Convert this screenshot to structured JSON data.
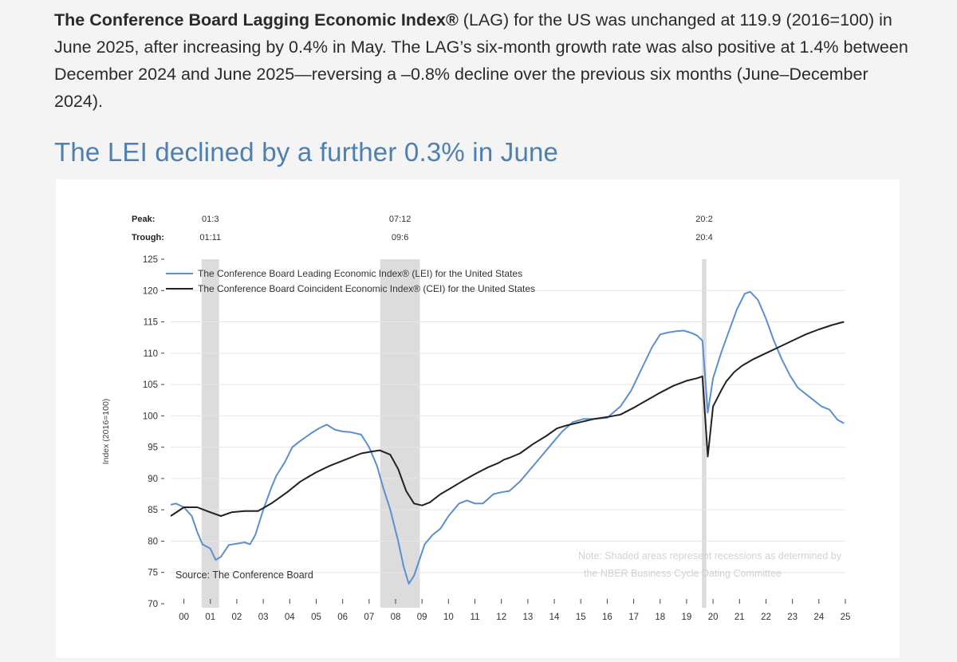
{
  "intro": {
    "bold": "The Conference Board Lagging Economic Index®",
    "rest": " (LAG) for the US was unchanged at 119.9 (2016=100) in June 2025, after increasing by 0.4% in May. The LAG’s six-month growth rate was also positive at 1.4% between December 2024 and June 2025—reversing a –0.8% decline over the previous six months (June–December 2024)."
  },
  "headline": "The LEI declined by a further 0.3% in June",
  "chart_data": {
    "type": "line",
    "ylabel": "Index (2016=100)",
    "ylim": [
      70,
      125
    ],
    "yticks": [
      70,
      75,
      80,
      85,
      90,
      95,
      100,
      105,
      110,
      115,
      120,
      125
    ],
    "xlim": [
      2000,
      2025.5
    ],
    "xtick_labels": [
      "00",
      "01",
      "02",
      "03",
      "04",
      "05",
      "06",
      "07",
      "08",
      "09",
      "10",
      "11",
      "12",
      "13",
      "14",
      "15",
      "16",
      "17",
      "18",
      "19",
      "20",
      "21",
      "22",
      "23",
      "24",
      "25"
    ],
    "peak_label": "Peak:",
    "trough_label": "Trough:",
    "recessions": [
      {
        "start": 2001.17,
        "end": 2001.83,
        "peak": "01:3",
        "trough": "01:11"
      },
      {
        "start": 2007.92,
        "end": 2009.42,
        "peak": "07:12",
        "trough": "09:6"
      },
      {
        "start": 2020.08,
        "end": 2020.25,
        "peak": "20:2",
        "trough": "20:4"
      }
    ],
    "series": [
      {
        "name": "The Conference Board Leading Economic Index® (LEI) for the United States",
        "color": "#5b8fd0",
        "x": [
          2000.0,
          2000.2,
          2000.5,
          2000.8,
          2001.0,
          2001.2,
          2001.5,
          2001.7,
          2001.9,
          2002.2,
          2002.5,
          2002.8,
          2003.0,
          2003.2,
          2003.5,
          2003.8,
          2004.0,
          2004.3,
          2004.6,
          2004.9,
          2005.3,
          2005.6,
          2005.9,
          2006.2,
          2006.5,
          2006.8,
          2007.2,
          2007.5,
          2007.8,
          2008.0,
          2008.3,
          2008.6,
          2008.8,
          2009.0,
          2009.2,
          2009.4,
          2009.6,
          2009.9,
          2010.2,
          2010.5,
          2010.9,
          2011.2,
          2011.5,
          2011.8,
          2012.2,
          2012.5,
          2012.8,
          2013.2,
          2013.6,
          2014.0,
          2014.4,
          2014.8,
          2015.2,
          2015.6,
          2016.0,
          2016.5,
          2017.0,
          2017.4,
          2017.8,
          2018.2,
          2018.5,
          2018.8,
          2019.1,
          2019.4,
          2019.7,
          2019.9,
          2020.1,
          2020.3,
          2020.5,
          2020.8,
          2021.1,
          2021.4,
          2021.7,
          2021.9,
          2022.2,
          2022.5,
          2022.8,
          2023.1,
          2023.4,
          2023.7,
          2024.0,
          2024.3,
          2024.6,
          2024.9,
          2025.2,
          2025.45
        ],
        "y": [
          85.8,
          86.0,
          85.4,
          84.0,
          81.5,
          79.5,
          78.8,
          77.0,
          77.5,
          79.4,
          79.6,
          79.8,
          79.5,
          81.0,
          85.0,
          88.5,
          90.5,
          92.5,
          95.0,
          96.0,
          97.2,
          98.0,
          98.6,
          97.8,
          97.5,
          97.4,
          97.0,
          95.0,
          92.0,
          89.0,
          85.0,
          80.0,
          76.0,
          73.2,
          74.5,
          77.0,
          79.5,
          81.0,
          82.0,
          84.0,
          86.0,
          86.5,
          86.0,
          86.0,
          87.5,
          87.8,
          88.0,
          89.5,
          91.5,
          93.5,
          95.5,
          97.5,
          99.0,
          99.5,
          99.5,
          99.7,
          101.5,
          104.0,
          107.5,
          111.0,
          113.0,
          113.3,
          113.5,
          113.6,
          113.2,
          112.8,
          112.0,
          100.5,
          106.0,
          110.0,
          113.5,
          117.0,
          119.5,
          119.8,
          118.5,
          115.5,
          112.0,
          109.0,
          106.5,
          104.5,
          103.5,
          102.5,
          101.5,
          101.0,
          99.4,
          98.8
        ]
      },
      {
        "name": "The Conference Board Coincident Economic Index® (CEI) for the United States",
        "color": "#222222",
        "x": [
          2000.0,
          2000.5,
          2001.0,
          2001.5,
          2001.9,
          2002.3,
          2002.8,
          2003.3,
          2003.8,
          2004.4,
          2004.9,
          2005.5,
          2006.0,
          2006.6,
          2007.2,
          2007.6,
          2007.9,
          2008.3,
          2008.6,
          2008.9,
          2009.2,
          2009.5,
          2009.8,
          2010.2,
          2010.6,
          2011.0,
          2011.5,
          2012.0,
          2012.4,
          2012.6,
          2012.8,
          2013.2,
          2013.7,
          2014.2,
          2014.6,
          2015.0,
          2015.5,
          2016.0,
          2016.5,
          2017.0,
          2017.5,
          2018.0,
          2018.5,
          2019.0,
          2019.5,
          2019.9,
          2020.1,
          2020.3,
          2020.5,
          2020.8,
          2021.0,
          2021.3,
          2021.6,
          2022.0,
          2022.5,
          2023.0,
          2023.5,
          2024.0,
          2024.5,
          2025.0,
          2025.45
        ],
        "y": [
          84.0,
          85.4,
          85.4,
          84.6,
          84.0,
          84.6,
          84.8,
          84.8,
          86.0,
          87.8,
          89.5,
          91.0,
          92.0,
          93.0,
          94.0,
          94.3,
          94.5,
          93.8,
          91.5,
          88.0,
          86.0,
          85.7,
          86.2,
          87.5,
          88.5,
          89.5,
          90.7,
          91.8,
          92.5,
          93.0,
          93.3,
          94.0,
          95.5,
          96.8,
          98.0,
          98.5,
          99.0,
          99.5,
          99.8,
          100.2,
          101.3,
          102.5,
          103.7,
          104.8,
          105.6,
          106.0,
          106.3,
          93.5,
          101.5,
          104.0,
          105.5,
          107.0,
          108.0,
          109.0,
          110.0,
          111.0,
          112.0,
          113.0,
          113.8,
          114.5,
          115.0
        ]
      }
    ],
    "source": "Source: The Conference Board",
    "note_line1": "Note: Shaded areas represent recessions as determined by",
    "note_line2": "the NBER Business Cycle Dating Committee"
  }
}
